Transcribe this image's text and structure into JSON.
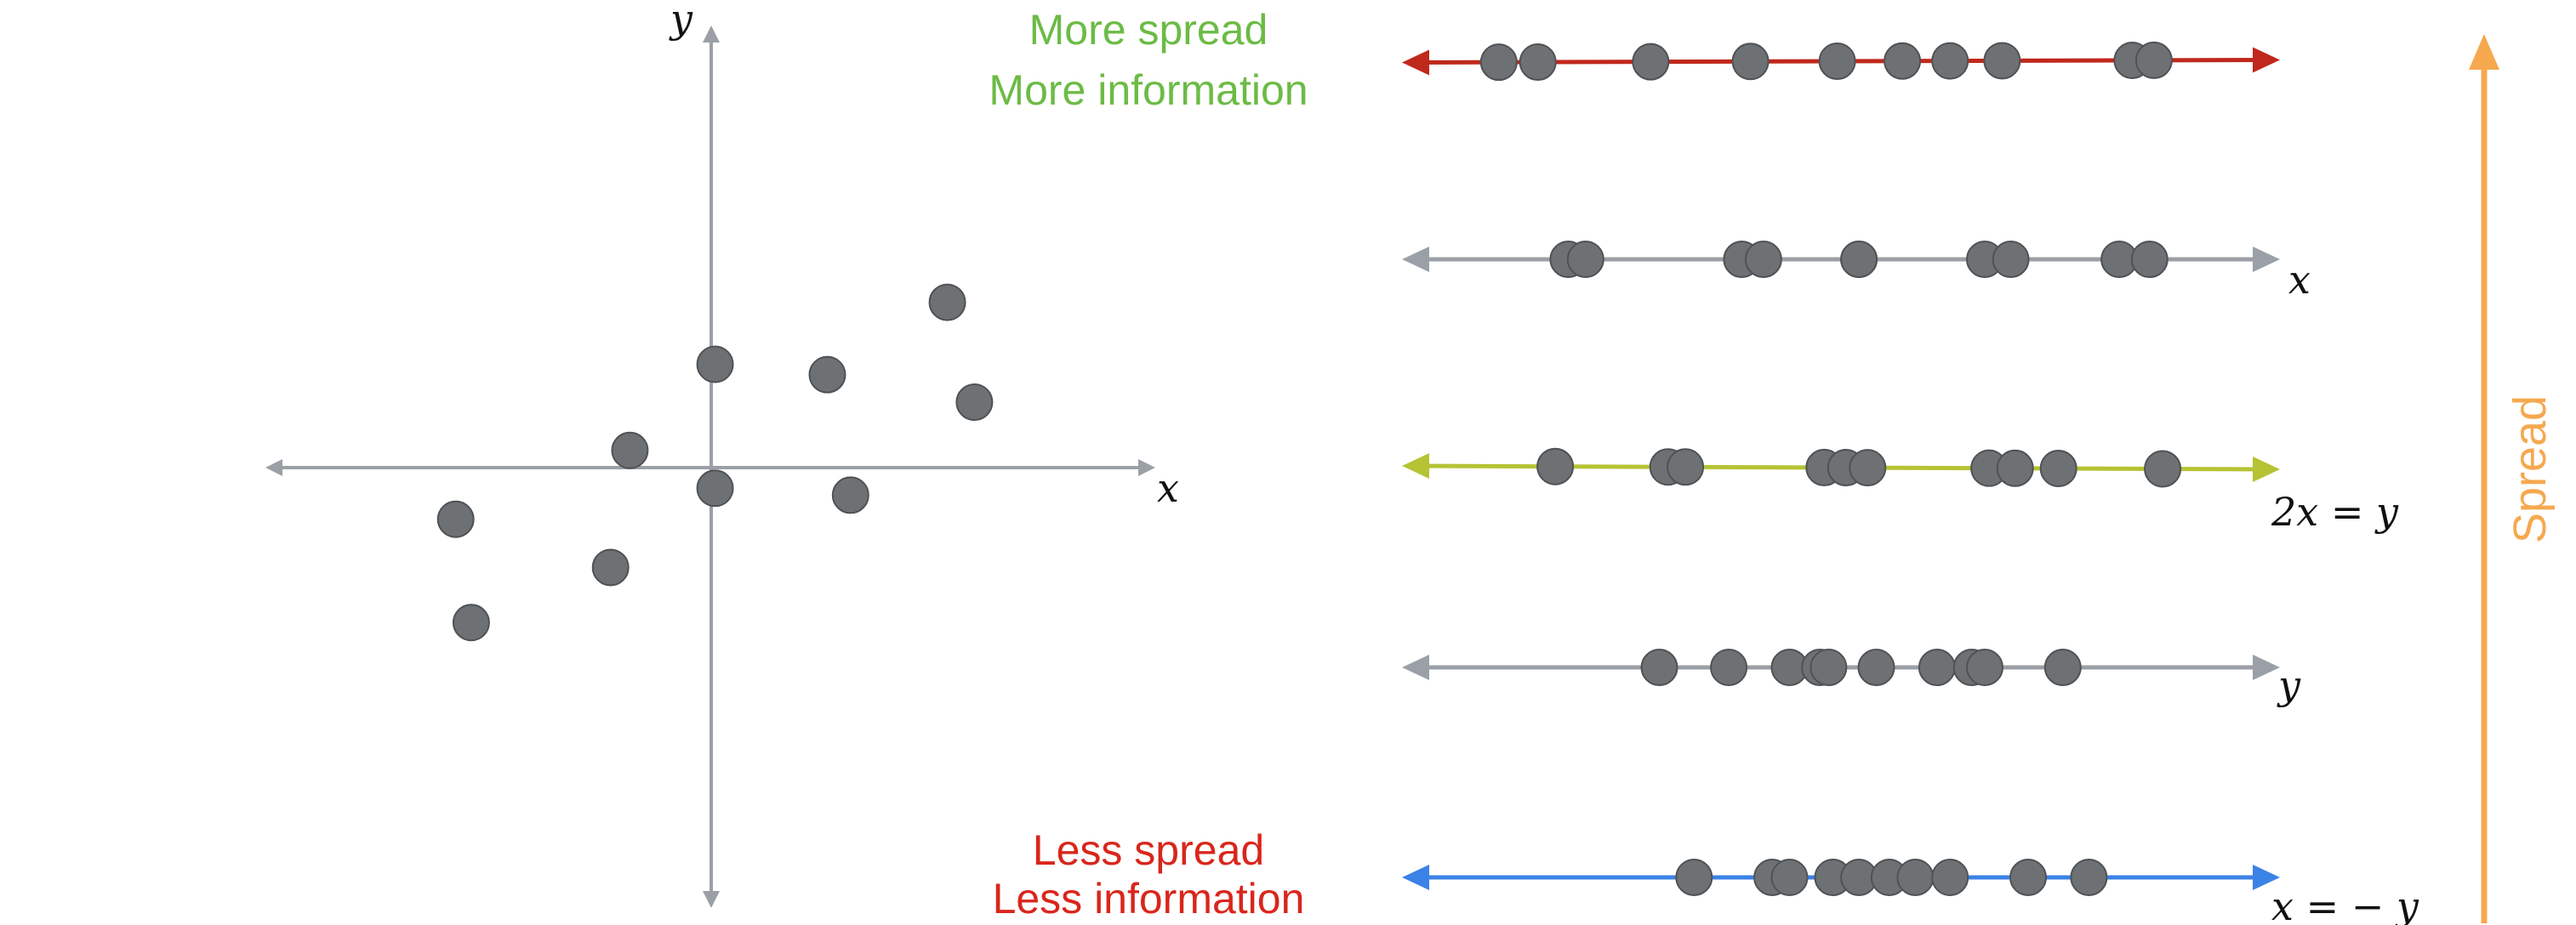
{
  "scatter": {
    "x_axis_label": "x",
    "y_axis_label": "y",
    "points": [
      {
        "x": -3.3,
        "y": -0.75
      },
      {
        "x": -3.1,
        "y": -2.25
      },
      {
        "x": -1.3,
        "y": -1.45
      },
      {
        "x": -1.05,
        "y": 0.25
      },
      {
        "x": 0.05,
        "y": 1.5
      },
      {
        "x": 0.05,
        "y": -0.3
      },
      {
        "x": 1.5,
        "y": 1.35
      },
      {
        "x": 1.8,
        "y": -0.4
      },
      {
        "x": 3.05,
        "y": 2.4
      },
      {
        "x": 3.4,
        "y": 0.95
      }
    ]
  },
  "projections": [
    {
      "id": "best",
      "axis_label": "",
      "color": "#c0281c",
      "points": [
        -4.1,
        -3.65,
        -2.35,
        -1.2,
        -0.2,
        0.55,
        1.1,
        1.7,
        3.2,
        3.45
      ]
    },
    {
      "id": "x",
      "axis_label": "x",
      "color": "#9aa0a6",
      "points": [
        -3.3,
        -3.1,
        -1.3,
        -1.05,
        0.05,
        0.05,
        1.5,
        1.8,
        3.05,
        3.4
      ]
    },
    {
      "id": "2x=y",
      "axis_label": "2x = y",
      "color": "#b5c334",
      "points": [
        -3.45,
        -2.15,
        -1.95,
        -0.35,
        -0.1,
        0.15,
        1.55,
        1.85,
        2.35,
        3.55
      ]
    },
    {
      "id": "y",
      "axis_label": "y",
      "color": "#9aa0a6",
      "points": [
        -2.25,
        -1.45,
        -0.75,
        -0.4,
        -0.3,
        0.25,
        0.95,
        1.35,
        1.5,
        2.4
      ]
    },
    {
      "id": "x=-y",
      "axis_label": "x = − y",
      "color": "#3b82e6",
      "points": [
        -1.85,
        -0.95,
        -0.75,
        -0.25,
        0.05,
        0.4,
        0.7,
        1.1,
        2.0,
        2.7
      ]
    }
  ],
  "labels": {
    "top_line1": "More spread",
    "top_line2": "More information",
    "bottom_line1": "Less spread",
    "bottom_line2": "Less information",
    "spread": "Spread"
  },
  "colors": {
    "axis": "#9aa0a6",
    "point_fill": "#6e7174",
    "point_stroke": "#4f5255",
    "top_text": "#6cbb45",
    "bottom_text": "#d9261c",
    "spread_arrow": "#f6a84f"
  }
}
